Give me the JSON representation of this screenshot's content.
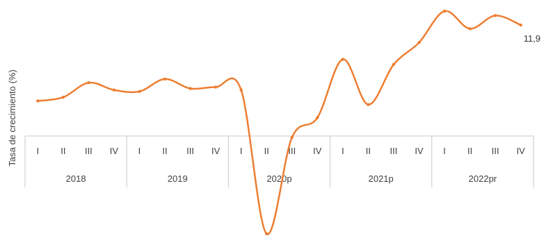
{
  "chart_data": {
    "type": "line",
    "title": "",
    "xlabel": "",
    "ylabel": "Tasa de crecimiento (%)",
    "grid": false,
    "legend": "none",
    "ylim": [
      -17,
      14
    ],
    "quarters": [
      "I",
      "II",
      "III",
      "IV",
      "I",
      "II",
      "III",
      "IV",
      "I",
      "II",
      "III",
      "IV",
      "I",
      "II",
      "III",
      "IV",
      "I",
      "II",
      "III",
      "IV"
    ],
    "year_groups": [
      {
        "label": "2018",
        "count": 4
      },
      {
        "label": "2019",
        "count": 4
      },
      {
        "label": "2020p",
        "count": 4
      },
      {
        "label": "2021p",
        "count": 4
      },
      {
        "label": "2022pr",
        "count": 4
      }
    ],
    "series": [
      {
        "color": "#ed7d31",
        "values": [
          1.5,
          2.0,
          4.0,
          3.0,
          2.8,
          4.5,
          3.2,
          3.4,
          3.0,
          -16.7,
          -3.5,
          -0.8,
          7.2,
          1.0,
          6.5,
          9.5,
          13.8,
          11.4,
          13.2,
          11.9
        ]
      }
    ],
    "last_label": "11,9"
  }
}
